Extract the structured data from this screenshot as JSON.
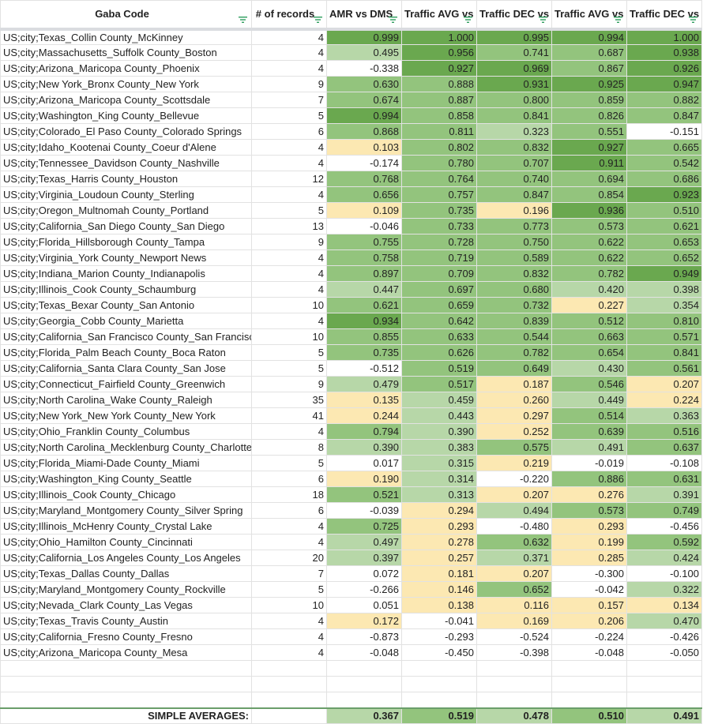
{
  "headers": [
    "Gaba Code",
    "# of records",
    "AMR vs DMS",
    "Traffic AVG vs DMS",
    "Traffic DEC vs DMS",
    "Traffic AVG vs OSS",
    "Traffic DEC vs OSS"
  ],
  "colors": {
    "white": "#ffffff",
    "yellow": "#fce8b2",
    "light_green": "#b7d7a8",
    "green": "#93c47d",
    "dark_green": "#6aa84f",
    "filter": "#2e9e5e"
  },
  "rows": [
    [
      "US;city;Texas_Collin County_McKinney",
      "4",
      "0.999",
      "1.000",
      "0.995",
      "0.994",
      "1.000"
    ],
    [
      "US;city;Massachusetts_Suffolk County_Boston",
      "4",
      "0.495",
      "0.956",
      "0.741",
      "0.687",
      "0.938"
    ],
    [
      "US;city;Arizona_Maricopa County_Phoenix",
      "4",
      "-0.338",
      "0.927",
      "0.969",
      "0.867",
      "0.926"
    ],
    [
      "US;city;New York_Bronx County_New York",
      "9",
      "0.630",
      "0.888",
      "0.931",
      "0.925",
      "0.947"
    ],
    [
      "US;city;Arizona_Maricopa County_Scottsdale",
      "7",
      "0.674",
      "0.887",
      "0.800",
      "0.859",
      "0.882"
    ],
    [
      "US;city;Washington_King County_Bellevue",
      "5",
      "0.994",
      "0.858",
      "0.841",
      "0.826",
      "0.847"
    ],
    [
      "US;city;Colorado_El Paso County_Colorado Springs",
      "6",
      "0.868",
      "0.811",
      "0.323",
      "0.551",
      "-0.151"
    ],
    [
      "US;city;Idaho_Kootenai County_Coeur d'Alene",
      "4",
      "0.103",
      "0.802",
      "0.832",
      "0.927",
      "0.665"
    ],
    [
      "US;city;Tennessee_Davidson County_Nashville",
      "4",
      "-0.174",
      "0.780",
      "0.707",
      "0.911",
      "0.542"
    ],
    [
      "US;city;Texas_Harris County_Houston",
      "12",
      "0.768",
      "0.764",
      "0.740",
      "0.694",
      "0.686"
    ],
    [
      "US;city;Virginia_Loudoun County_Sterling",
      "4",
      "0.656",
      "0.757",
      "0.847",
      "0.854",
      "0.923"
    ],
    [
      "US;city;Oregon_Multnomah County_Portland",
      "5",
      "0.109",
      "0.735",
      "0.196",
      "0.936",
      "0.510"
    ],
    [
      "US;city;California_San Diego County_San Diego",
      "13",
      "-0.046",
      "0.733",
      "0.773",
      "0.573",
      "0.621"
    ],
    [
      "US;city;Florida_Hillsborough County_Tampa",
      "9",
      "0.755",
      "0.728",
      "0.750",
      "0.622",
      "0.653"
    ],
    [
      "US;city;Virginia_York County_Newport News",
      "4",
      "0.758",
      "0.719",
      "0.589",
      "0.622",
      "0.652"
    ],
    [
      "US;city;Indiana_Marion County_Indianapolis",
      "4",
      "0.897",
      "0.709",
      "0.832",
      "0.782",
      "0.949"
    ],
    [
      "US;city;Illinois_Cook County_Schaumburg",
      "4",
      "0.447",
      "0.697",
      "0.680",
      "0.420",
      "0.398"
    ],
    [
      "US;city;Texas_Bexar County_San Antonio",
      "10",
      "0.621",
      "0.659",
      "0.732",
      "0.227",
      "0.354"
    ],
    [
      "US;city;Georgia_Cobb County_Marietta",
      "4",
      "0.934",
      "0.642",
      "0.839",
      "0.512",
      "0.810"
    ],
    [
      "US;city;California_San Francisco County_San Francisco",
      "10",
      "0.855",
      "0.633",
      "0.544",
      "0.663",
      "0.571"
    ],
    [
      "US;city;Florida_Palm Beach County_Boca Raton",
      "5",
      "0.735",
      "0.626",
      "0.782",
      "0.654",
      "0.841"
    ],
    [
      "US;city;California_Santa Clara County_San Jose",
      "5",
      "-0.512",
      "0.519",
      "0.649",
      "0.430",
      "0.561"
    ],
    [
      "US;city;Connecticut_Fairfield County_Greenwich",
      "9",
      "0.479",
      "0.517",
      "0.187",
      "0.546",
      "0.207"
    ],
    [
      "US;city;North Carolina_Wake County_Raleigh",
      "35",
      "0.135",
      "0.459",
      "0.260",
      "0.449",
      "0.224"
    ],
    [
      "US;city;New York_New York County_New York",
      "41",
      "0.244",
      "0.443",
      "0.297",
      "0.514",
      "0.363"
    ],
    [
      "US;city;Ohio_Franklin County_Columbus",
      "4",
      "0.794",
      "0.390",
      "0.252",
      "0.639",
      "0.516"
    ],
    [
      "US;city;North Carolina_Mecklenburg County_Charlotte",
      "8",
      "0.390",
      "0.383",
      "0.575",
      "0.491",
      "0.637"
    ],
    [
      "US;city;Florida_Miami-Dade County_Miami",
      "5",
      "0.017",
      "0.315",
      "0.219",
      "-0.019",
      "-0.108"
    ],
    [
      "US;city;Washington_King County_Seattle",
      "6",
      "0.190",
      "0.314",
      "-0.220",
      "0.886",
      "0.631"
    ],
    [
      "US;city;Illinois_Cook County_Chicago",
      "18",
      "0.521",
      "0.313",
      "0.207",
      "0.276",
      "0.391"
    ],
    [
      "US;city;Maryland_Montgomery County_Silver Spring",
      "6",
      "-0.039",
      "0.294",
      "0.494",
      "0.573",
      "0.749"
    ],
    [
      "US;city;Illinois_McHenry County_Crystal Lake",
      "4",
      "0.725",
      "0.293",
      "-0.480",
      "0.293",
      "-0.456"
    ],
    [
      "US;city;Ohio_Hamilton County_Cincinnati",
      "4",
      "0.497",
      "0.278",
      "0.632",
      "0.199",
      "0.592"
    ],
    [
      "US;city;California_Los Angeles County_Los Angeles",
      "20",
      "0.397",
      "0.257",
      "0.371",
      "0.285",
      "0.424"
    ],
    [
      "US;city;Texas_Dallas County_Dallas",
      "7",
      "0.072",
      "0.181",
      "0.207",
      "-0.300",
      "-0.100"
    ],
    [
      "US;city;Maryland_Montgomery County_Rockville",
      "5",
      "-0.266",
      "0.146",
      "0.652",
      "-0.042",
      "0.322"
    ],
    [
      "US;city;Nevada_Clark County_Las Vegas",
      "10",
      "0.051",
      "0.138",
      "0.116",
      "0.157",
      "0.134"
    ],
    [
      "US;city;Texas_Travis County_Austin",
      "4",
      "0.172",
      "-0.041",
      "0.169",
      "0.206",
      "0.470"
    ],
    [
      "US;city;California_Fresno County_Fresno",
      "4",
      "-0.873",
      "-0.293",
      "-0.524",
      "-0.224",
      "-0.426"
    ],
    [
      "US;city;Arizona_Maricopa County_Mesa",
      "4",
      "-0.048",
      "-0.450",
      "-0.398",
      "-0.048",
      "-0.050"
    ]
  ],
  "averages": {
    "label": "SIMPLE AVERAGES:",
    "values": [
      "0.367",
      "0.519",
      "0.478",
      "0.510",
      "0.491"
    ]
  }
}
